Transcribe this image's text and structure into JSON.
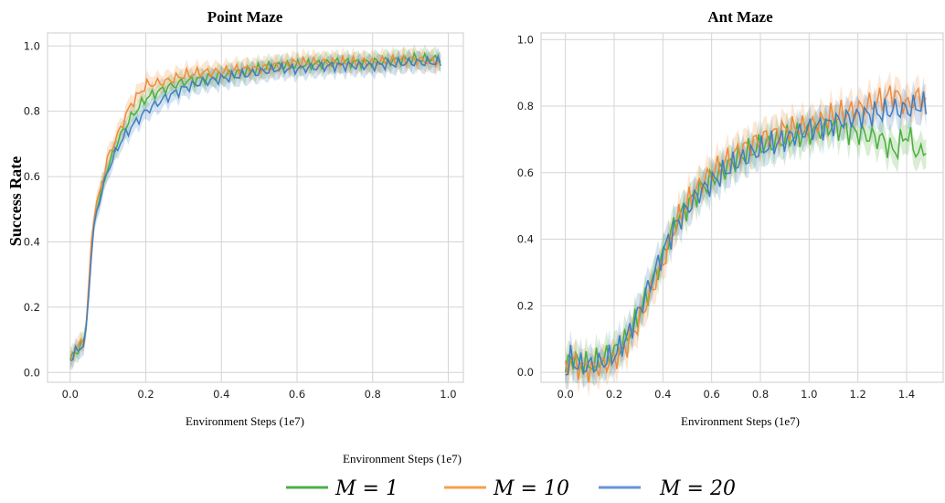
{
  "legend": {
    "note": "Environment Steps (1e7)",
    "entries": [
      {
        "label": "M = 1",
        "color": "#4daf4a"
      },
      {
        "label": "M = 10",
        "color": "#f5a04c"
      },
      {
        "label": "M = 20",
        "color": "#6495d8"
      }
    ]
  },
  "chart_data": [
    {
      "type": "line",
      "title": "Point Maze",
      "xlabel": "Environment Steps (1e7)",
      "ylabel": "Success Rate",
      "xlim": [
        -0.06,
        1.04
      ],
      "ylim": [
        -0.03,
        1.04
      ],
      "xticks": [
        "0.0",
        "0.2",
        "0.4",
        "0.6",
        "0.8",
        "1.0"
      ],
      "yticks": [
        "0.0",
        "0.2",
        "0.4",
        "0.6",
        "0.8",
        "1.0"
      ],
      "grid": true,
      "series": [
        {
          "name": "M = 1",
          "color": "#4caf3d",
          "x": [
            0.0,
            0.02,
            0.04,
            0.06,
            0.08,
            0.1,
            0.13,
            0.16,
            0.2,
            0.25,
            0.3,
            0.35,
            0.4,
            0.45,
            0.5,
            0.55,
            0.6,
            0.7,
            0.8,
            0.9,
            0.98
          ],
          "y": [
            0.04,
            0.07,
            0.1,
            0.45,
            0.55,
            0.63,
            0.72,
            0.78,
            0.84,
            0.87,
            0.89,
            0.9,
            0.91,
            0.92,
            0.93,
            0.94,
            0.94,
            0.95,
            0.95,
            0.96,
            0.96
          ]
        },
        {
          "name": "M = 10",
          "color": "#f08b3a",
          "x": [
            0.0,
            0.02,
            0.04,
            0.06,
            0.08,
            0.1,
            0.13,
            0.16,
            0.2,
            0.25,
            0.3,
            0.35,
            0.4,
            0.45,
            0.5,
            0.55,
            0.6,
            0.7,
            0.8,
            0.9,
            0.98
          ],
          "y": [
            0.04,
            0.08,
            0.1,
            0.47,
            0.56,
            0.66,
            0.74,
            0.82,
            0.88,
            0.89,
            0.91,
            0.92,
            0.92,
            0.93,
            0.93,
            0.94,
            0.95,
            0.95,
            0.95,
            0.96,
            0.95
          ]
        },
        {
          "name": "M = 20",
          "color": "#3f7ec4",
          "x": [
            0.0,
            0.02,
            0.04,
            0.06,
            0.08,
            0.1,
            0.13,
            0.16,
            0.2,
            0.25,
            0.3,
            0.35,
            0.4,
            0.45,
            0.5,
            0.55,
            0.6,
            0.7,
            0.8,
            0.9,
            0.98
          ],
          "y": [
            0.04,
            0.07,
            0.09,
            0.43,
            0.54,
            0.62,
            0.7,
            0.75,
            0.8,
            0.84,
            0.87,
            0.89,
            0.9,
            0.91,
            0.92,
            0.93,
            0.93,
            0.94,
            0.94,
            0.95,
            0.95
          ]
        }
      ]
    },
    {
      "type": "line",
      "title": "Ant Maze",
      "xlabel": "Environment Steps (1e7)",
      "ylabel": "",
      "xlim": [
        -0.1,
        1.55
      ],
      "ylim": [
        -0.03,
        1.02
      ],
      "xticks": [
        "0.0",
        "0.2",
        "0.4",
        "0.6",
        "0.8",
        "1.0",
        "1.2",
        "1.4"
      ],
      "yticks": [
        "0.0",
        "0.2",
        "0.4",
        "0.6",
        "0.8",
        "1.0"
      ],
      "grid": true,
      "series": [
        {
          "name": "M = 1",
          "color": "#4caf3d",
          "x": [
            0.0,
            0.02,
            0.05,
            0.1,
            0.15,
            0.2,
            0.25,
            0.3,
            0.35,
            0.4,
            0.45,
            0.5,
            0.55,
            0.6,
            0.7,
            0.8,
            0.9,
            1.0,
            1.1,
            1.2,
            1.3,
            1.35,
            1.4,
            1.45,
            1.48
          ],
          "y": [
            0.0,
            0.05,
            0.03,
            0.02,
            0.04,
            0.06,
            0.1,
            0.17,
            0.26,
            0.35,
            0.45,
            0.5,
            0.55,
            0.58,
            0.64,
            0.68,
            0.7,
            0.72,
            0.74,
            0.72,
            0.7,
            0.66,
            0.72,
            0.65,
            0.68
          ]
        },
        {
          "name": "M = 10",
          "color": "#f08b3a",
          "x": [
            0.0,
            0.02,
            0.05,
            0.1,
            0.15,
            0.2,
            0.25,
            0.3,
            0.35,
            0.4,
            0.45,
            0.5,
            0.55,
            0.6,
            0.7,
            0.8,
            0.9,
            1.0,
            1.1,
            1.2,
            1.3,
            1.35,
            1.4,
            1.45,
            1.48
          ],
          "y": [
            0.0,
            0.04,
            0.02,
            0.01,
            0.02,
            0.04,
            0.08,
            0.15,
            0.24,
            0.33,
            0.44,
            0.51,
            0.56,
            0.6,
            0.66,
            0.7,
            0.73,
            0.74,
            0.77,
            0.79,
            0.82,
            0.84,
            0.8,
            0.83,
            0.81
          ]
        },
        {
          "name": "M = 20",
          "color": "#3f7ec4",
          "x": [
            0.0,
            0.02,
            0.05,
            0.1,
            0.15,
            0.2,
            0.25,
            0.3,
            0.35,
            0.4,
            0.45,
            0.5,
            0.55,
            0.6,
            0.7,
            0.8,
            0.9,
            1.0,
            1.1,
            1.2,
            1.3,
            1.35,
            1.4,
            1.45,
            1.48
          ],
          "y": [
            0.0,
            0.04,
            0.02,
            0.02,
            0.03,
            0.05,
            0.1,
            0.18,
            0.27,
            0.36,
            0.44,
            0.49,
            0.54,
            0.57,
            0.63,
            0.67,
            0.7,
            0.73,
            0.75,
            0.77,
            0.78,
            0.79,
            0.79,
            0.8,
            0.8
          ]
        }
      ]
    }
  ]
}
